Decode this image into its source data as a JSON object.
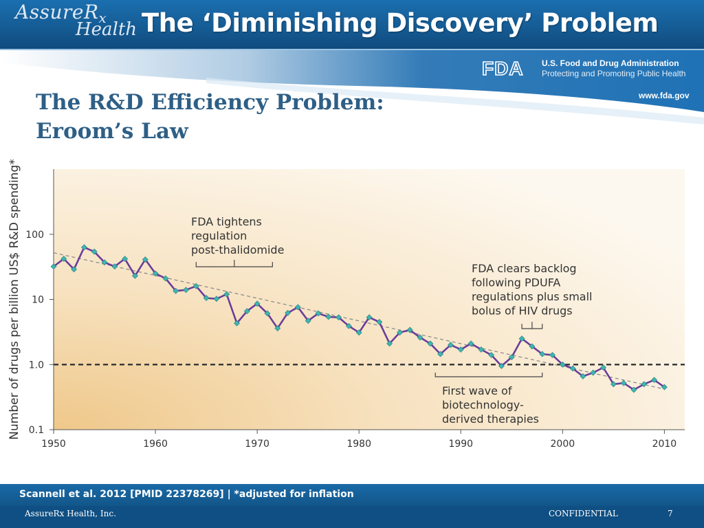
{
  "header": {
    "logo_line1": "AssureR",
    "logo_subscript": "x",
    "logo_line2": "Health",
    "title": "The ‘Diminishing Discovery’ Problem"
  },
  "fda": {
    "name": "U.S. Food and Drug Administration",
    "tagline": "Protecting and Promoting Public Health",
    "url": "www.fda.gov"
  },
  "content": {
    "title_line1": "The R&D Efficiency Problem:",
    "title_line2": "Eroom’s Law"
  },
  "chart_data": {
    "type": "line",
    "title": "",
    "xlabel": "",
    "ylabel": "Number of drugs per billion US$ R&D spending*",
    "yscale": "log",
    "xlim": [
      1950,
      2012
    ],
    "ylim": [
      0.1,
      1000
    ],
    "xticks": [
      1950,
      1960,
      1970,
      1980,
      1990,
      2000,
      2010
    ],
    "yticks": [
      {
        "value": 0.1,
        "label": "0.1"
      },
      {
        "value": 1,
        "label": "1.0"
      },
      {
        "value": 10,
        "label": "10"
      },
      {
        "value": 100,
        "label": "100"
      }
    ],
    "grid": false,
    "colors": {
      "line": "#6a3d9a",
      "marker": "#3fb5b0",
      "trend": "#8c8c8c",
      "reference": "#3a3a3a",
      "background_warm": "#f1cd8f",
      "background_light": "#fbf3e3"
    },
    "series": [
      {
        "x": [
          1950,
          1951,
          1952,
          1953,
          1954,
          1955,
          1956,
          1957,
          1958,
          1959,
          1960,
          1961,
          1962,
          1963,
          1964,
          1965,
          1966,
          1967,
          1968,
          1969,
          1970,
          1971,
          1972,
          1973,
          1974,
          1975,
          1976,
          1977,
          1978,
          1979,
          1980,
          1981,
          1982,
          1983,
          1984,
          1985,
          1986,
          1987,
          1988,
          1989,
          1990,
          1991,
          1992,
          1993,
          1994,
          1995,
          1996,
          1997,
          1998,
          1999,
          2000,
          2001,
          2002,
          2003,
          2004,
          2005,
          2006,
          2007,
          2008,
          2009,
          2010
        ],
        "y": [
          32,
          42,
          29,
          63,
          54,
          37,
          32,
          42,
          23,
          41,
          25,
          21,
          13.5,
          14,
          16,
          10.5,
          10.2,
          12,
          4.3,
          6.6,
          8.6,
          6.1,
          3.6,
          6.2,
          7.6,
          4.7,
          6.1,
          5.4,
          5.3,
          3.9,
          3.1,
          5.3,
          4.5,
          2.1,
          3.1,
          3.4,
          2.6,
          2.1,
          1.45,
          2.0,
          1.7,
          2.1,
          1.7,
          1.4,
          0.95,
          1.3,
          2.5,
          1.9,
          1.45,
          1.4,
          1.0,
          0.87,
          0.66,
          0.75,
          0.9,
          0.5,
          0.52,
          0.41,
          0.5,
          0.58,
          0.45
        ]
      }
    ],
    "trend": {
      "x": [
        1950,
        2010
      ],
      "y": [
        52,
        0.42
      ]
    },
    "reference_line": {
      "y": 1.0
    },
    "annotations": [
      {
        "text_lines": [
          "FDA tightens",
          "regulation",
          "post-thalidomide"
        ],
        "bracket_x": [
          1964,
          1971.5
        ]
      },
      {
        "text_lines": [
          "FDA clears backlog",
          "following PDUFA",
          "regulations plus small",
          "bolus of HIV drugs"
        ],
        "bracket_x": [
          1996,
          1998
        ]
      },
      {
        "text_lines": [
          "First wave of",
          "biotechnology-",
          "derived therapies"
        ],
        "bracket_x": [
          1987.5,
          1998
        ]
      }
    ]
  },
  "footer": {
    "citation": "Scannell et al. 2012 [PMID 22378269] | *adjusted for inflation",
    "company": "AssureRx Health, Inc.",
    "confidentiality": "CONFIDENTIAL",
    "page_number": "7"
  }
}
